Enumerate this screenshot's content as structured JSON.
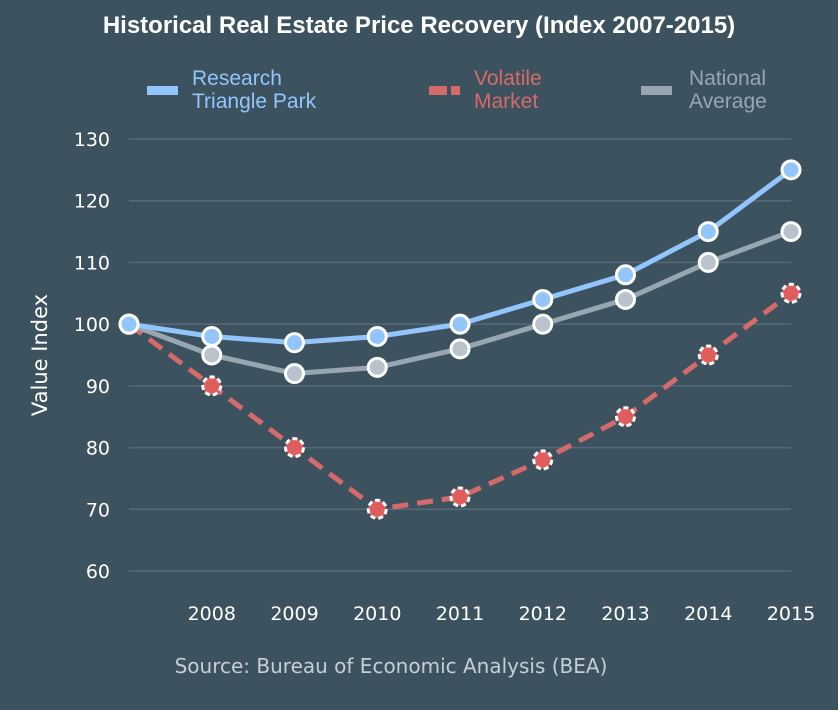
{
  "chart_data": {
    "type": "line",
    "title": "Historical Real Estate Price Recovery (Index 2007-2015)",
    "xlabel": "",
    "ylabel": "Value Index",
    "x": [
      2007,
      2008,
      2009,
      2010,
      2011,
      2012,
      2013,
      2014,
      2015
    ],
    "x_tick_labels": [
      "2008",
      "2009",
      "2010",
      "2011",
      "2012",
      "2013",
      "2014",
      "2015"
    ],
    "y_ticks": [
      60,
      70,
      80,
      90,
      100,
      110,
      120,
      130
    ],
    "ylim": [
      60,
      130
    ],
    "grid": true,
    "legend_position": "top",
    "series": [
      {
        "name": "Research Triangle Park",
        "legend_lines": [
          "Research",
          "Triangle Park"
        ],
        "color": "#93c5fd",
        "marker_fill": "#93c5fd",
        "style": "solid",
        "values": [
          100,
          98,
          97,
          98,
          100,
          104,
          108,
          115,
          125
        ]
      },
      {
        "name": "Volatile Market",
        "legend_lines": [
          "Volatile",
          "Market"
        ],
        "color": "#d46a6a",
        "marker_fill": "#e05d5d",
        "style": "dashed",
        "values": [
          100,
          90,
          80,
          70,
          72,
          78,
          85,
          95,
          105
        ]
      },
      {
        "name": "National Average",
        "legend_lines": [
          "National",
          "Average"
        ],
        "color": "#98a6b1",
        "marker_fill": "#b8c3cd",
        "style": "solid",
        "values": [
          100,
          95,
          92,
          93,
          96,
          100,
          104,
          110,
          115
        ]
      }
    ],
    "source": "Source: Bureau of Economic Analysis (BEA)"
  },
  "colors": {
    "background": "#3d525f",
    "grid": "#56697a",
    "text": "#ffffff"
  }
}
